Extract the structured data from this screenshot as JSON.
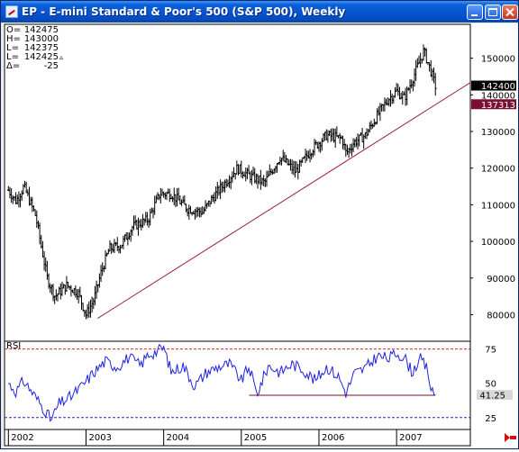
{
  "window": {
    "title": "EP - E-mini Standard & Poor's 500 (S&P 500), Weekly",
    "buttons": {
      "minimize": "minimize-icon",
      "maximize": "maximize-icon",
      "close": "close-icon"
    }
  },
  "ohlc": {
    "rows": [
      {
        "label": "O=",
        "value": "142475"
      },
      {
        "label": "H=",
        "value": "143000"
      },
      {
        "label": "L=",
        "value": "142375"
      },
      {
        "label": "L=",
        "value": "142425",
        "marker": "▵"
      },
      {
        "label": "Δ=",
        "value": "-25"
      }
    ]
  },
  "colors": {
    "price_bars": "#000000",
    "trendline": "#a0203a",
    "rsi_line": "#2020e0",
    "overbought": "#e02020",
    "oversold": "#2020e0",
    "last_price_tag": "#000000",
    "trend_tag": "#7a0f32"
  },
  "chart_data": [
    {
      "type": "line",
      "ylim": [
        73000,
        159000
      ],
      "yticks": [
        80000,
        90000,
        100000,
        110000,
        120000,
        130000,
        140000,
        150000
      ],
      "ytick_labels": [
        "80000",
        "90000",
        "100000",
        "110000",
        "120000",
        "130000",
        "140000",
        "150000"
      ],
      "grid": false,
      "x": [
        2002.0,
        2002.1,
        2002.2,
        2002.35,
        2002.5,
        2002.6,
        2002.75,
        2002.9,
        2003.0,
        2003.1,
        2003.2,
        2003.3,
        2003.45,
        2003.6,
        2003.8,
        2003.95,
        2004.1,
        2004.3,
        2004.5,
        2004.6,
        2004.75,
        2004.95,
        2005.1,
        2005.3,
        2005.5,
        2005.7,
        2005.9,
        2006.1,
        2006.3,
        2006.35,
        2006.45,
        2006.6,
        2006.8,
        2006.9,
        2007.0,
        2007.1,
        2007.2,
        2007.35,
        2007.45,
        2007.5
      ],
      "values": [
        114000,
        111000,
        115000,
        107000,
        90000,
        85000,
        88000,
        86000,
        80000,
        84000,
        92000,
        98000,
        99000,
        104000,
        106000,
        113000,
        113000,
        109000,
        108000,
        111000,
        115000,
        120000,
        118000,
        116000,
        123000,
        119000,
        125000,
        129000,
        128000,
        124000,
        127000,
        129000,
        136000,
        139000,
        141000,
        139000,
        144000,
        152000,
        146000,
        142400
      ],
      "last_price": 142400,
      "last_price_label": "142400",
      "trendline": {
        "points": [
          [
            2003.15,
            79000
          ],
          [
            2007.5,
            137313
          ]
        ],
        "end_label": "137313"
      },
      "x_tick_labels": [
        "2002",
        "2003",
        "2004",
        "2005",
        "2006",
        "2007"
      ],
      "x_tick_values": [
        2002,
        2003,
        2004,
        2005,
        2006,
        2007
      ]
    },
    {
      "type": "line",
      "title": "RSI",
      "ylim": [
        17,
        80
      ],
      "yticks": [
        25,
        50,
        75
      ],
      "ytick_labels": [
        "25",
        "50",
        "75"
      ],
      "overbought": 75,
      "oversold": 25,
      "x": [
        2002.0,
        2002.1,
        2002.2,
        2002.35,
        2002.5,
        2002.55,
        2002.65,
        2002.8,
        2002.95,
        2003.1,
        2003.25,
        2003.4,
        2003.55,
        2003.7,
        2003.8,
        2003.9,
        2004.0,
        2004.1,
        2004.25,
        2004.4,
        2004.55,
        2004.7,
        2004.85,
        2005.0,
        2005.1,
        2005.2,
        2005.35,
        2005.5,
        2005.65,
        2005.8,
        2005.95,
        2006.1,
        2006.25,
        2006.35,
        2006.45,
        2006.6,
        2006.75,
        2006.9,
        2007.0,
        2007.1,
        2007.2,
        2007.3,
        2007.4,
        2007.45,
        2007.5
      ],
      "values": [
        50,
        44,
        52,
        40,
        28,
        23,
        35,
        40,
        48,
        58,
        66,
        62,
        69,
        63,
        71,
        73,
        76,
        58,
        63,
        48,
        58,
        62,
        64,
        52,
        62,
        42,
        63,
        58,
        64,
        60,
        52,
        62,
        55,
        43,
        57,
        61,
        70,
        68,
        72,
        69,
        58,
        68,
        60,
        43,
        41.25
      ],
      "last_value_label": "41.25",
      "support": [
        [
          2005.1,
          41.25
        ],
        [
          2007.5,
          41.25
        ]
      ]
    }
  ]
}
